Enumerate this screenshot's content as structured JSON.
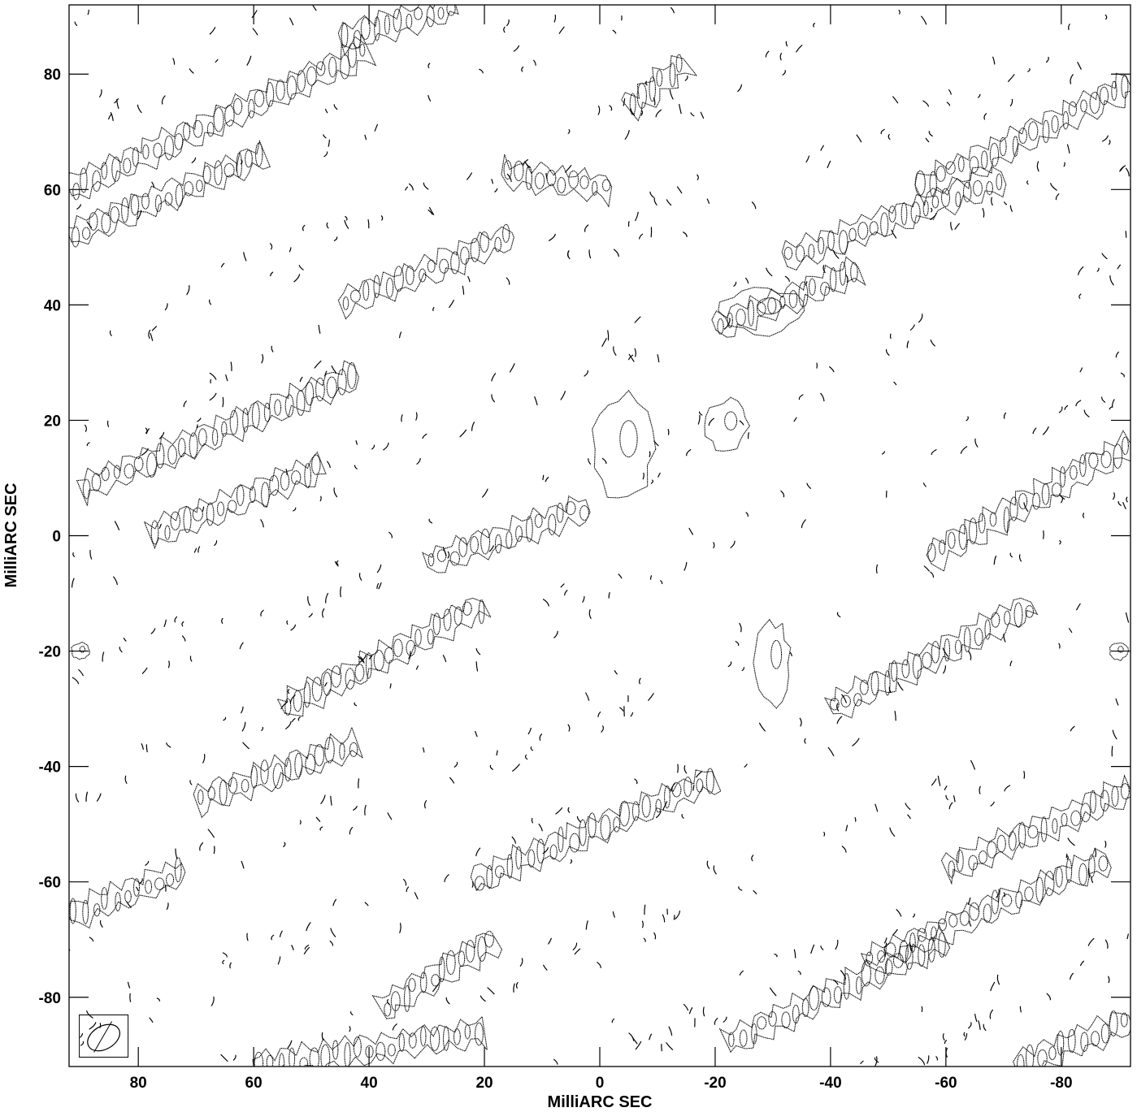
{
  "chart_data": {
    "type": "contour",
    "title": "",
    "xlabel": "MilliARC SEC",
    "ylabel": "MilliARC SEC",
    "xlim": [
      92,
      -92
    ],
    "ylim": [
      -92,
      92
    ],
    "x_ticks": [
      80,
      60,
      40,
      20,
      0,
      -20,
      -40,
      -60,
      -80
    ],
    "y_ticks": [
      80,
      60,
      40,
      20,
      0,
      -20,
      -40,
      -60,
      -80
    ],
    "x_tick_labels": [
      "80",
      "60",
      "40",
      "20",
      "0",
      "-20",
      "-40",
      "-60",
      "-80"
    ],
    "y_tick_labels": [
      "80",
      "60",
      "40",
      "20",
      "0",
      "-20",
      "-40",
      "-60",
      "-80"
    ],
    "grid": false,
    "beam": {
      "x": 86,
      "y": -87,
      "major_mas": 6,
      "minor_mas": 4,
      "pa_deg": 30
    },
    "stripe_angle_deg": 22,
    "stripes": [
      {
        "x0": 92,
        "y0": 60,
        "x1": 40,
        "y1": 84
      },
      {
        "x0": 92,
        "y0": 52,
        "x1": 58,
        "y1": 66
      },
      {
        "x0": 17,
        "y0": 63,
        "x1": -2,
        "y1": 60
      },
      {
        "x0": 45,
        "y0": 40,
        "x1": 15,
        "y1": 52
      },
      {
        "x0": 90,
        "y0": 8,
        "x1": 42,
        "y1": 28
      },
      {
        "x0": 78,
        "y0": 0,
        "x1": 48,
        "y1": 12
      },
      {
        "x0": 55,
        "y0": -30,
        "x1": 20,
        "y1": -12
      },
      {
        "x0": 30,
        "y0": -5,
        "x1": 2,
        "y1": 5
      },
      {
        "x0": 70,
        "y0": -46,
        "x1": 42,
        "y1": -36
      },
      {
        "x0": 22,
        "y0": -60,
        "x1": -20,
        "y1": -42
      },
      {
        "x0": 38,
        "y0": -82,
        "x1": 18,
        "y1": -70
      },
      {
        "x0": -20,
        "y0": 36,
        "x1": -45,
        "y1": 46
      },
      {
        "x0": -32,
        "y0": 48,
        "x1": -70,
        "y1": 62
      },
      {
        "x0": -55,
        "y0": 60,
        "x1": -92,
        "y1": 78
      },
      {
        "x0": -40,
        "y0": -30,
        "x1": -75,
        "y1": -12
      },
      {
        "x0": -57,
        "y0": -4,
        "x1": -92,
        "y1": 16
      },
      {
        "x0": -60,
        "y0": -58,
        "x1": -92,
        "y1": -44
      },
      {
        "x0": -46,
        "y0": -74,
        "x1": -88,
        "y1": -56
      },
      {
        "x0": -22,
        "y0": -88,
        "x1": -60,
        "y1": -70
      },
      {
        "x0": -72,
        "y0": -92,
        "x1": -92,
        "y1": -84
      },
      {
        "x0": 60,
        "y0": -92,
        "x1": 20,
        "y1": -86
      },
      {
        "x0": 92,
        "y0": -66,
        "x1": 72,
        "y1": -58
      },
      {
        "x0": 45,
        "y0": 86,
        "x1": 25,
        "y1": 92
      },
      {
        "x0": -5,
        "y0": 74,
        "x1": -15,
        "y1": 82
      }
    ],
    "blobs": [
      {
        "x": -4,
        "y": 15,
        "w": 10,
        "h": 18
      },
      {
        "x": -22,
        "y": 19,
        "w": 7,
        "h": 9
      },
      {
        "x": -30,
        "y": -22,
        "w": 6,
        "h": 14
      },
      {
        "x": -28,
        "y": 39,
        "w": 14,
        "h": 8
      },
      {
        "x": 90,
        "y": -20,
        "w": 3,
        "h": 3
      },
      {
        "x": -90,
        "y": -20,
        "w": 3,
        "h": 3
      }
    ]
  }
}
